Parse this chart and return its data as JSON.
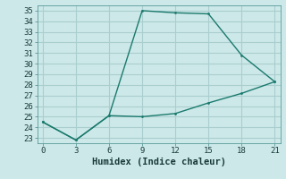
{
  "xlabel": "Humidex (Indice chaleur)",
  "line1_x": [
    0,
    3,
    6,
    9,
    12,
    15,
    18,
    21
  ],
  "line1_y": [
    24.5,
    22.8,
    25.1,
    35.0,
    34.8,
    34.7,
    30.8,
    28.3
  ],
  "line2_x": [
    0,
    3,
    6,
    9,
    12,
    15,
    18,
    21
  ],
  "line2_y": [
    24.5,
    22.8,
    25.1,
    25.0,
    25.3,
    26.3,
    27.2,
    28.3
  ],
  "line_color": "#1a7a6e",
  "bg_color": "#cce8e8",
  "grid_color": "#aacece",
  "xlim": [
    -0.5,
    21.5
  ],
  "ylim": [
    22.5,
    35.5
  ],
  "xticks": [
    0,
    3,
    6,
    9,
    12,
    15,
    18,
    21
  ],
  "yticks": [
    23,
    24,
    25,
    26,
    27,
    28,
    29,
    30,
    31,
    32,
    33,
    34,
    35
  ],
  "tick_fontsize": 6.5,
  "xlabel_fontsize": 7.5
}
